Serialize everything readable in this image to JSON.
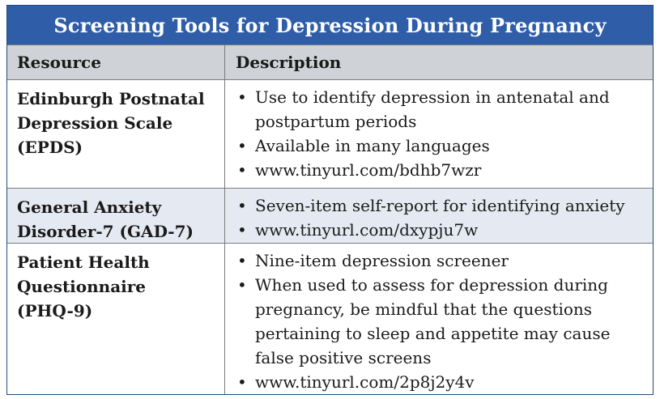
{
  "title": "Screening Tools for Depression During Pregnancy",
  "headers": {
    "resource": "Resource",
    "description": "Description"
  },
  "rows": [
    {
      "resource_lines": [
        "Edinburgh Postnatal",
        "Depression Scale",
        "(EPDS)"
      ],
      "bullets": [
        "Use to identify depression in antenatal and postpartum periods",
        "Available in many languages",
        "www.tinyurl.com/bdhb7wzr"
      ]
    },
    {
      "resource_lines": [
        "General Anxiety",
        "Disorder-7 (GAD-7)"
      ],
      "bullets": [
        "Seven-item self-report for identifying anxiety",
        "www.tinyurl.com/dxypju7w"
      ]
    },
    {
      "resource_lines": [
        "Patient Health",
        "Questionnaire",
        "(PHQ-9)"
      ],
      "bullets": [
        "Nine-item depression screener",
        "When used to assess for depression during pregnancy, be mindful that the questions pertaining to sleep and appetite may cause false positive screens",
        "www.tinyurl.com/2p8j2y4v"
      ]
    }
  ],
  "colors": {
    "title_bg": "#2f5da8",
    "header_bg": "#cfd3d8",
    "alt_row_bg": "#e4e9f2",
    "border": "#7a7a7a"
  }
}
